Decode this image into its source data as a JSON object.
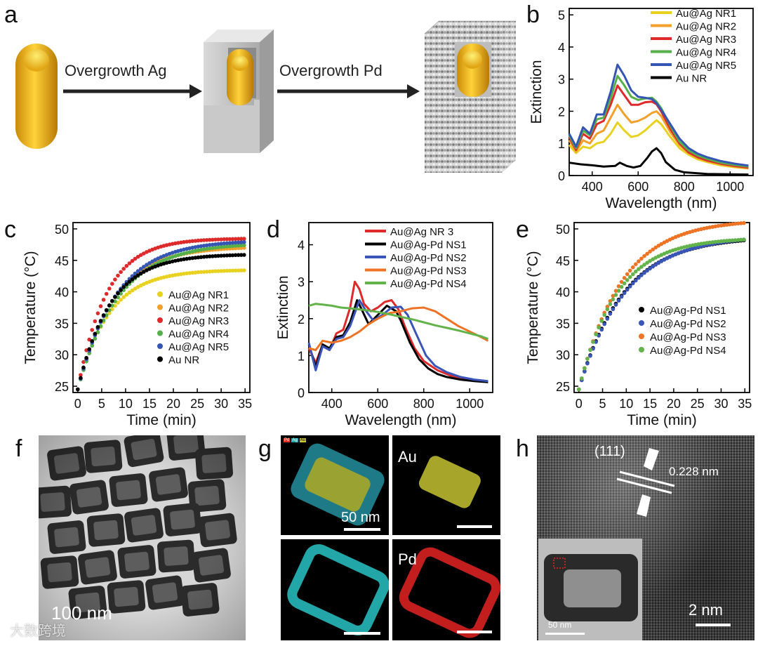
{
  "panel_labels": {
    "a": "a",
    "b": "b",
    "c": "c",
    "d": "d",
    "e": "e",
    "f": "f",
    "g": "g",
    "h": "h"
  },
  "schematic": {
    "step1": "Overgrowth Ag",
    "step2": "Overgrowth  Pd"
  },
  "colors": {
    "nr1": "#e8d21f",
    "nr2": "#f2a02c",
    "nr3": "#de2a2a",
    "nr4": "#56b04a",
    "nr5": "#3555b5",
    "au": "#000000",
    "ns1": "#000000",
    "ns2": "#3a55b8",
    "ns3": "#ee7325",
    "ns4": "#62b34a",
    "gold": "#e3a916"
  },
  "micrographs": {
    "f_scale": "100 nm",
    "g_scale": "50 nm",
    "g_labels": {
      "au": "Au",
      "pd": "Pd"
    },
    "g_legend": [
      "Pd",
      "Ag",
      "Au"
    ],
    "h_plane": "(111)",
    "h_spacing": "0.228 nm",
    "h_scale": "2 nm",
    "h_inset_scale": "50 nm"
  },
  "watermark": "大数跨境",
  "chart_data": [
    {
      "id": "b",
      "type": "line",
      "xlabel": "Wavelength (nm)",
      "ylabel": "Extinction",
      "xlim": [
        300,
        1100
      ],
      "ylim": [
        0,
        5.2
      ],
      "xticks": [
        400,
        600,
        800,
        1000
      ],
      "yticks": [
        0,
        1,
        2,
        3,
        4,
        5
      ],
      "legend": "top-right",
      "series": [
        {
          "name": "Au@Ag NR1",
          "color": "#e8d21f",
          "x": [
            300,
            330,
            360,
            390,
            420,
            450,
            480,
            510,
            540,
            570,
            600,
            630,
            660,
            680,
            700,
            740,
            780,
            820,
            860,
            900,
            960,
            1020,
            1080
          ],
          "y": [
            0.95,
            0.7,
            0.9,
            0.85,
            1.0,
            1.05,
            1.3,
            1.65,
            1.4,
            1.2,
            1.25,
            1.4,
            1.6,
            1.72,
            1.6,
            1.2,
            0.85,
            0.65,
            0.5,
            0.42,
            0.32,
            0.26,
            0.22
          ]
        },
        {
          "name": "Au@Ag NR2",
          "color": "#f2a02c",
          "x": [
            300,
            330,
            360,
            390,
            420,
            450,
            480,
            510,
            540,
            570,
            600,
            630,
            660,
            680,
            700,
            740,
            780,
            820,
            860,
            900,
            960,
            1020,
            1080
          ],
          "y": [
            1.1,
            0.75,
            1.1,
            1.0,
            1.3,
            1.4,
            1.8,
            2.2,
            1.9,
            1.65,
            1.7,
            1.8,
            1.95,
            2.0,
            1.85,
            1.35,
            0.95,
            0.7,
            0.55,
            0.45,
            0.35,
            0.28,
            0.23
          ]
        },
        {
          "name": "Au@Ag NR3",
          "color": "#de2a2a",
          "x": [
            300,
            330,
            360,
            390,
            420,
            450,
            480,
            510,
            540,
            570,
            600,
            630,
            660,
            680,
            700,
            740,
            780,
            820,
            860,
            900,
            960,
            1020,
            1080
          ],
          "y": [
            1.2,
            0.8,
            1.3,
            1.15,
            1.6,
            1.7,
            2.2,
            2.8,
            2.5,
            2.2,
            2.2,
            2.28,
            2.3,
            2.22,
            2.0,
            1.45,
            1.0,
            0.72,
            0.57,
            0.47,
            0.37,
            0.3,
            0.25
          ]
        },
        {
          "name": "Au@Ag NR4",
          "color": "#56b04a",
          "x": [
            300,
            330,
            360,
            390,
            420,
            450,
            480,
            510,
            540,
            570,
            600,
            630,
            660,
            680,
            700,
            740,
            780,
            820,
            860,
            900,
            960,
            1020,
            1080
          ],
          "y": [
            1.25,
            0.85,
            1.4,
            1.25,
            1.75,
            1.8,
            2.4,
            3.1,
            2.8,
            2.45,
            2.35,
            2.4,
            2.42,
            2.3,
            2.1,
            1.55,
            1.05,
            0.78,
            0.62,
            0.52,
            0.4,
            0.33,
            0.28
          ]
        },
        {
          "name": "Au@Ag NR5",
          "color": "#3555b5",
          "x": [
            300,
            330,
            360,
            390,
            420,
            450,
            480,
            510,
            540,
            570,
            600,
            630,
            660,
            680,
            700,
            740,
            780,
            820,
            860,
            900,
            960,
            1020,
            1080
          ],
          "y": [
            1.3,
            0.9,
            1.5,
            1.3,
            1.9,
            1.9,
            2.6,
            3.45,
            3.1,
            2.65,
            2.45,
            2.42,
            2.38,
            2.25,
            2.05,
            1.6,
            1.15,
            0.85,
            0.68,
            0.57,
            0.45,
            0.37,
            0.31
          ]
        },
        {
          "name": "Au NR",
          "color": "#000000",
          "x": [
            300,
            350,
            400,
            450,
            500,
            520,
            550,
            580,
            610,
            640,
            660,
            680,
            700,
            720,
            760,
            800,
            900,
            1000,
            1080
          ],
          "y": [
            0.4,
            0.35,
            0.32,
            0.28,
            0.3,
            0.4,
            0.3,
            0.25,
            0.3,
            0.55,
            0.75,
            0.85,
            0.7,
            0.42,
            0.18,
            0.1,
            0.05,
            0.04,
            0.03
          ]
        }
      ]
    },
    {
      "id": "c",
      "type": "scatter",
      "xlabel": "Time (min)",
      "ylabel": "Temperature (°C)",
      "xlim": [
        -1,
        36
      ],
      "ylim": [
        24,
        51
      ],
      "xticks": [
        0,
        5,
        10,
        15,
        20,
        25,
        30,
        35
      ],
      "yticks": [
        25,
        30,
        35,
        40,
        45,
        50
      ],
      "legend": "bottom-right",
      "series": [
        {
          "name": "Au@Ag NR1",
          "color": "#e8d21f",
          "T0": 24.5,
          "Tmax": 43.5,
          "tau": 6.5
        },
        {
          "name": "Au@Ag NR2",
          "color": "#f2a02c",
          "T0": 24.5,
          "Tmax": 47.2,
          "tau": 7.5
        },
        {
          "name": "Au@Ag NR3",
          "color": "#de2a2a",
          "T0": 24.5,
          "Tmax": 48.5,
          "tau": 6.0
        },
        {
          "name": "Au@Ag NR4",
          "color": "#56b04a",
          "T0": 24.5,
          "Tmax": 47.8,
          "tau": 8.5
        },
        {
          "name": "Au@Ag NR5",
          "color": "#3555b5",
          "T0": 24.5,
          "Tmax": 48.2,
          "tau": 8.0
        },
        {
          "name": "Au NR",
          "color": "#000000",
          "T0": 24.5,
          "Tmax": 46.0,
          "tau": 6.8
        }
      ]
    },
    {
      "id": "d",
      "type": "line",
      "xlabel": "Wavelength (nm)",
      "ylabel": "Extinction",
      "xlim": [
        300,
        1100
      ],
      "ylim": [
        0,
        4.6
      ],
      "xticks": [
        400,
        600,
        800,
        1000
      ],
      "yticks": [
        0,
        1,
        2,
        3,
        4
      ],
      "legend": "top-right",
      "series": [
        {
          "name": "Au@Ag NR 3",
          "color": "#de2a2a",
          "x": [
            300,
            330,
            360,
            390,
            420,
            450,
            480,
            500,
            520,
            540,
            570,
            600,
            630,
            660,
            690,
            720,
            760,
            800,
            860,
            920,
            1000,
            1080
          ],
          "y": [
            1.2,
            0.8,
            1.3,
            1.15,
            1.6,
            1.7,
            2.3,
            3.0,
            2.8,
            2.4,
            2.2,
            2.3,
            2.45,
            2.5,
            2.25,
            1.75,
            1.2,
            0.85,
            0.6,
            0.45,
            0.35,
            0.3
          ]
        },
        {
          "name": "Au@Ag-Pd NS1",
          "color": "#000000",
          "x": [
            300,
            330,
            360,
            390,
            420,
            450,
            480,
            510,
            530,
            560,
            600,
            640,
            680,
            700,
            740,
            780,
            820,
            860,
            900,
            960,
            1020,
            1080
          ],
          "y": [
            1.3,
            0.7,
            1.3,
            1.2,
            1.5,
            1.55,
            1.9,
            2.5,
            2.25,
            1.85,
            2.1,
            2.35,
            2.2,
            1.95,
            1.35,
            0.9,
            0.65,
            0.5,
            0.42,
            0.35,
            0.31,
            0.28
          ]
        },
        {
          "name": "Au@Ag-Pd NS2",
          "color": "#3a55b8",
          "x": [
            300,
            330,
            360,
            390,
            420,
            450,
            480,
            520,
            550,
            580,
            620,
            660,
            700,
            730,
            770,
            810,
            850,
            900,
            960,
            1020,
            1080
          ],
          "y": [
            1.35,
            0.6,
            1.25,
            1.15,
            1.45,
            1.5,
            1.8,
            2.5,
            2.2,
            1.95,
            2.1,
            2.3,
            2.32,
            2.1,
            1.55,
            1.0,
            0.72,
            0.55,
            0.42,
            0.35,
            0.31
          ]
        },
        {
          "name": "Au@Ag-Pd NS3",
          "color": "#ee7325",
          "x": [
            300,
            330,
            360,
            400,
            440,
            480,
            520,
            560,
            600,
            650,
            700,
            750,
            800,
            850,
            900,
            950,
            1000,
            1050,
            1080
          ],
          "y": [
            1.2,
            1.15,
            1.4,
            1.35,
            1.4,
            1.5,
            1.65,
            1.85,
            2.0,
            2.15,
            2.2,
            2.28,
            2.3,
            2.2,
            2.0,
            1.8,
            1.65,
            1.5,
            1.4
          ]
        },
        {
          "name": "Au@Ag-Pd NS4",
          "color": "#62b34a",
          "x": [
            300,
            330,
            360,
            400,
            440,
            480,
            520,
            560,
            600,
            650,
            700,
            750,
            800,
            850,
            900,
            950,
            1000,
            1050,
            1080
          ],
          "y": [
            2.35,
            2.4,
            2.38,
            2.35,
            2.3,
            2.28,
            2.25,
            2.22,
            2.18,
            2.12,
            2.05,
            1.98,
            1.9,
            1.82,
            1.75,
            1.68,
            1.6,
            1.52,
            1.45
          ]
        }
      ]
    },
    {
      "id": "e",
      "type": "scatter",
      "xlabel": "Time (min)",
      "ylabel": "Temperature (°C)",
      "xlim": [
        -1,
        36
      ],
      "ylim": [
        24,
        51
      ],
      "xticks": [
        0,
        5,
        10,
        15,
        20,
        25,
        30,
        35
      ],
      "yticks": [
        25,
        30,
        35,
        40,
        45,
        50
      ],
      "legend": "bottom-right",
      "series": [
        {
          "name": "Au@Ag-Pd NS1",
          "color": "#000000",
          "T0": 24.5,
          "Tmax": 48.8,
          "tau": 9.5
        },
        {
          "name": "Au@Ag-Pd NS2",
          "color": "#3a55b8",
          "T0": 24.5,
          "Tmax": 49.0,
          "tau": 9.8
        },
        {
          "name": "Au@Ag-Pd NS3",
          "color": "#ee7325",
          "T0": 24.5,
          "Tmax": 51.5,
          "tau": 9.0
        },
        {
          "name": "Au@Ag-Pd NS4",
          "color": "#62b34a",
          "T0": 24.5,
          "Tmax": 48.6,
          "tau": 8.0
        }
      ]
    }
  ]
}
